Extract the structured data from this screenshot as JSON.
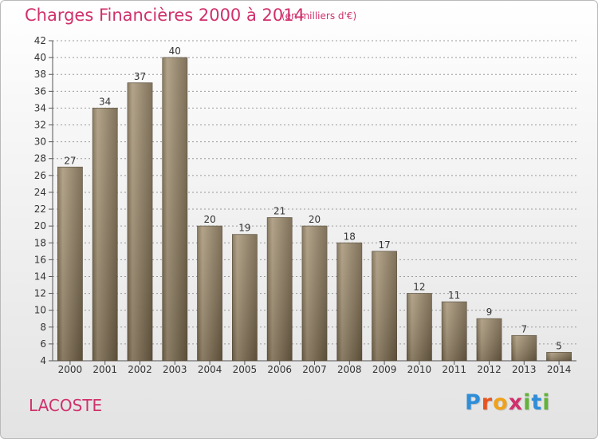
{
  "header": {
    "title": "Charges Financières 2000 à 2014",
    "subtitle": "(en milliers d'€)"
  },
  "footer": {
    "commune": "LACOSTE",
    "logo": {
      "letters": [
        "P",
        "r",
        "o",
        "x",
        "i",
        "t",
        "i"
      ],
      "colors": [
        "#2f8ed8",
        "#e8541e",
        "#f0a11a",
        "#d0306b",
        "#62b33a",
        "#2f8ed8",
        "#62b33a"
      ]
    }
  },
  "colors": {
    "title": "#d0306b",
    "bar_light": "#ab9a79",
    "bar_dark": "#7a6a4d",
    "bar_edge": "#5e5240",
    "grid": "#999999"
  },
  "chart_data": {
    "type": "bar",
    "title": "Charges Financières 2000 à 2014",
    "subtitle": "(en milliers d'€)",
    "categories": [
      "2000",
      "2001",
      "2002",
      "2003",
      "2004",
      "2005",
      "2006",
      "2007",
      "2008",
      "2009",
      "2010",
      "2011",
      "2012",
      "2013",
      "2014"
    ],
    "values": [
      27,
      34,
      37,
      40,
      20,
      19,
      21,
      20,
      18,
      17,
      12,
      11,
      9,
      7,
      5
    ],
    "ylim": [
      4,
      42
    ],
    "yticks": [
      4,
      6,
      8,
      10,
      12,
      14,
      16,
      18,
      20,
      22,
      24,
      26,
      28,
      30,
      32,
      34,
      36,
      38,
      40,
      42
    ],
    "grid": "horizontal dashed",
    "legend": "none"
  }
}
